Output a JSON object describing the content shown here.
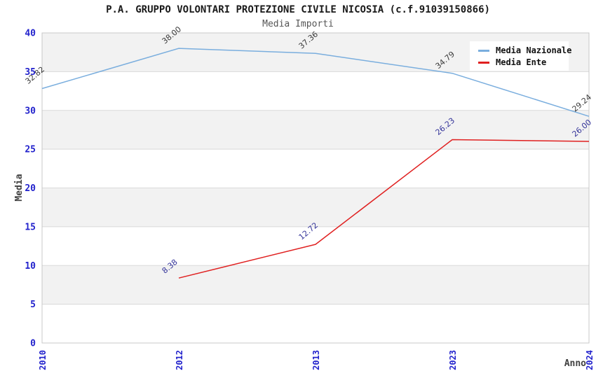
{
  "chart_data": {
    "type": "line",
    "title": "P.A. GRUPPO VOLONTARI PROTEZIONE CIVILE NICOSIA (c.f.91039150866)",
    "subtitle": "Media Importi",
    "xlabel": "Anno",
    "ylabel": "Media",
    "categories": [
      "2010",
      "2012",
      "2013",
      "2023",
      "2024"
    ],
    "series": [
      {
        "name": "Media Nazionale",
        "color": "#7aaede",
        "label_color": "#3a3a3a",
        "values": [
          32.82,
          38.0,
          37.36,
          34.79,
          29.24
        ]
      },
      {
        "name": "Media Ente",
        "color": "#e02020",
        "label_color": "#333399",
        "values": [
          null,
          8.38,
          12.72,
          26.23,
          26.0
        ]
      }
    ],
    "ylim": [
      0,
      40
    ],
    "ytick_step": 5,
    "grid": "horizontal",
    "legend_position": "top-right",
    "colors": {
      "tick_label": "#2222cc",
      "axis_title": "#404040",
      "gridline": "#d9d9d9",
      "frame": "#c8c8c8",
      "band_even": "#ffffff",
      "band_odd": "#f2f2f2",
      "legend_bg": "#ffffff"
    }
  }
}
